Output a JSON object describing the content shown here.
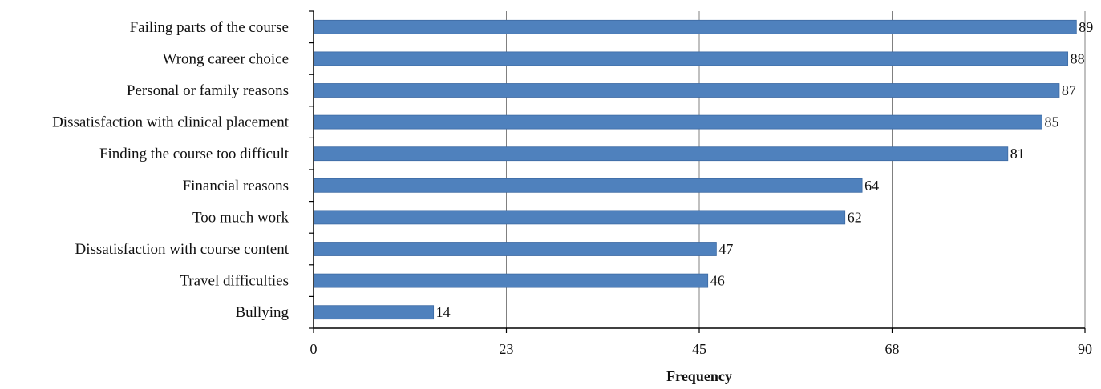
{
  "chart_data": {
    "type": "bar",
    "orientation": "horizontal",
    "categories": [
      "Failing parts of the course",
      "Wrong career choice",
      "Personal or family reasons",
      "Dissatisfaction with clinical placement",
      "Finding the course too difficult",
      "Financial reasons",
      "Too much work",
      "Dissatisfaction with course content",
      "Travel difficulties",
      "Bullying"
    ],
    "values": [
      89,
      88,
      87,
      85,
      81,
      64,
      62,
      47,
      46,
      14
    ],
    "data_labels": [
      "89",
      "88",
      "87",
      "85",
      "81",
      "64",
      "62",
      "47",
      "46",
      "14"
    ],
    "xlabel": "Frequency",
    "xlim": [
      0,
      90
    ],
    "xticks": [
      0,
      22.5,
      45,
      67.5,
      90
    ],
    "xtick_labels": [
      "0",
      "23",
      "45",
      "68",
      "90"
    ],
    "grid": "vertical",
    "legend": "none",
    "bar_color": "#4f81bd",
    "bar_edge_color": "#3c6aa3",
    "grid_color": "#808080",
    "axis_color": "#000000"
  }
}
